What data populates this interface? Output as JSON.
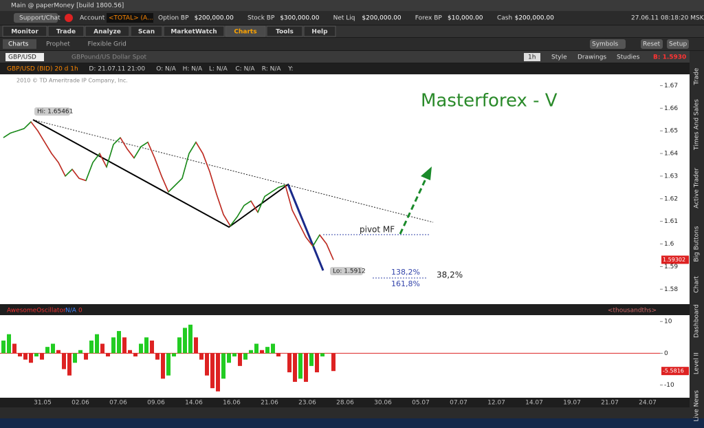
{
  "window": {
    "title": "Main @ paperMoney [build 1800.56]"
  },
  "toolbar": {
    "support": "Support/Chat",
    "account_label": "Account",
    "account": "<TOTAL> (A...",
    "fields": [
      {
        "label": "Option BP",
        "value": "$200,000.00"
      },
      {
        "label": "Stock BP",
        "value": "$300,000.00"
      },
      {
        "label": "Net Liq",
        "value": "$200,000.00"
      },
      {
        "label": "Forex BP",
        "value": "$10,000.00"
      },
      {
        "label": "Cash",
        "value": "$200,000.00"
      }
    ],
    "datetime": "27.06.11 08:18:20 MSK"
  },
  "tabs": [
    "Monitor",
    "Trade",
    "Analyze",
    "Scan",
    "MarketWatch",
    "Charts",
    "Tools",
    "Help"
  ],
  "subtabs": [
    "Charts",
    "Prophet",
    "Flexible Grid"
  ],
  "right_buttons": [
    "Symbols",
    "Reset",
    "Setup"
  ],
  "chart_header": {
    "symbol": "GBP/USD",
    "description": "GBPound/US Dollar Spot",
    "period": "1h",
    "buttons": [
      "Style",
      "Drawings",
      "Studies"
    ],
    "quote": "B: 1.5930"
  },
  "info_line": [
    "GBP/USD (BID) 20 d 1h",
    "D: 21.07.11 21:00",
    "O: N/A",
    "H: N/A",
    "L: N/A",
    "C: N/A",
    "R: N/A",
    "Y:"
  ],
  "copyright": "2010 © TD Ameritrade IP Company, Inc.",
  "annotations": {
    "title": "Masterforex - V",
    "hi": "Hi: 1.65461",
    "lo": "Lo: 1.5912",
    "pivot": "pivot MF",
    "fib1": "138,2%",
    "fib2": "161,8%",
    "fib3": "38,2%"
  },
  "side_tabs": [
    "Trade",
    "Times And Sales",
    "Active Trader",
    "Big Buttons",
    "Chart",
    "Dashboard",
    "Level II",
    "Live News"
  ],
  "price_chart": {
    "type": "line",
    "color": "#2a8a2a",
    "values": [
      1.647,
      1.649,
      1.65,
      1.651,
      1.654,
      1.65,
      1.645,
      1.64,
      1.636,
      1.63,
      1.633,
      1.629,
      1.628,
      1.636,
      1.64,
      1.634,
      1.644,
      1.647,
      1.642,
      1.638,
      1.643,
      1.645,
      1.638,
      1.63,
      1.623,
      1.626,
      1.629,
      1.64,
      1.645,
      1.64,
      1.632,
      1.622,
      1.613,
      1.608,
      1.612,
      1.617,
      1.619,
      1.614,
      1.621,
      1.623,
      1.625,
      1.626,
      1.615,
      1.609,
      1.603,
      1.599,
      1.604,
      1.6,
      1.593
    ],
    "ylim": [
      1.574,
      1.675
    ],
    "yticks": [
      1.67,
      1.66,
      1.65,
      1.64,
      1.63,
      1.62,
      1.61,
      1.6,
      1.59,
      1.58
    ],
    "last": 1.59302,
    "categories": [
      "31.05",
      "02.06",
      "07.06",
      "09.06",
      "14.06",
      "16.06",
      "21.06",
      "23.06",
      "28.06",
      "30.06",
      "05.07",
      "07.07",
      "12.07",
      "14.07",
      "19.07",
      "21.07",
      "24.07"
    ]
  },
  "oscillator": {
    "type": "bar",
    "name": "AwesomeOscillator",
    "status": "N/A",
    "param": "0",
    "units": "<thousandths>",
    "up_color": "#22cc22",
    "down_color": "#dd2222",
    "values": [
      4,
      6,
      3,
      -1,
      -2,
      -3,
      -1,
      -2,
      2,
      3,
      1,
      -5,
      -7,
      -3,
      1,
      -2,
      4,
      6,
      3,
      -1,
      5,
      7,
      5,
      1,
      -1,
      3,
      5,
      4,
      -2,
      -8,
      -7,
      -1,
      5,
      8,
      9,
      5,
      -2,
      -7,
      -11,
      -12,
      -8,
      -3,
      -1,
      -4,
      -2,
      1,
      3,
      1,
      2,
      3,
      -1,
      0,
      -6,
      -9,
      -8,
      -9,
      -4,
      -6,
      -1,
      0,
      -5.6
    ],
    "ylim": [
      -14,
      12
    ],
    "yticks": [
      10,
      0,
      -10
    ],
    "last": -5.5816
  }
}
